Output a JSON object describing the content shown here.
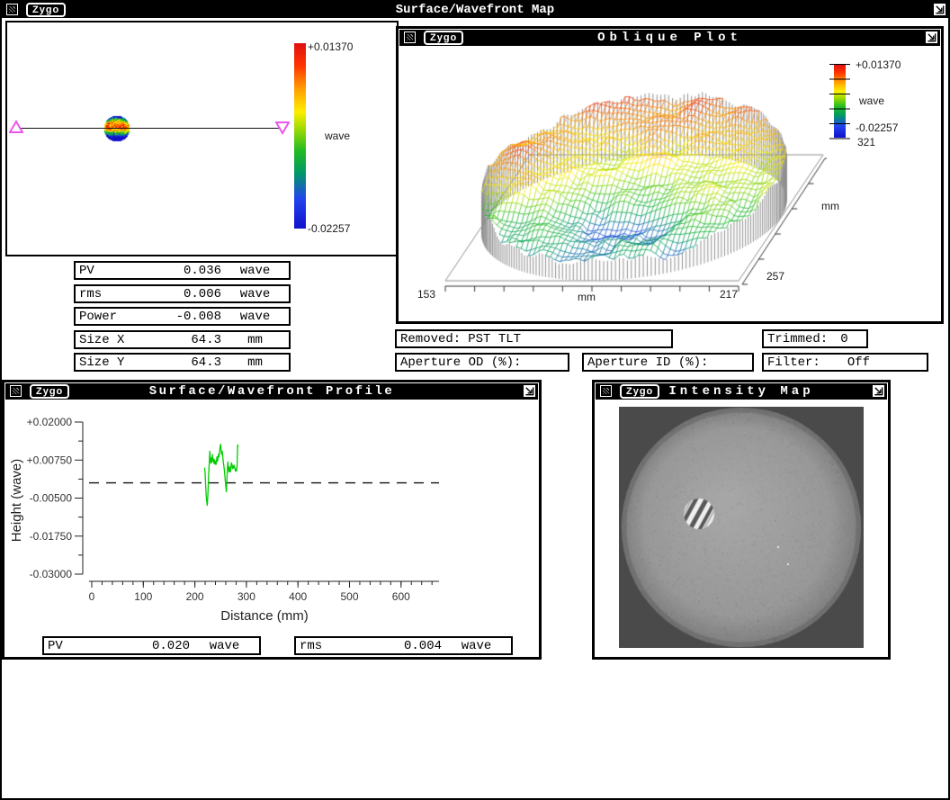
{
  "windows": {
    "main": {
      "logo": "Zygo",
      "title": "Surface/Wavefront Map"
    },
    "oblique": {
      "logo": "Zygo",
      "title": "Oblique Plot"
    },
    "profile": {
      "logo": "Zygo",
      "title": "Surface/Wavefront Profile"
    },
    "intensity": {
      "logo": "Zygo",
      "title": "Intensity Map"
    }
  },
  "map_panel": {
    "colorbar": {
      "max_label": "+0.01370",
      "unit_label": "wave",
      "min_label": "-0.02257"
    }
  },
  "map_stats": {
    "rows": [
      {
        "label": "PV",
        "value": "0.036",
        "unit": "wave"
      },
      {
        "label": "rms",
        "value": "0.006",
        "unit": "wave"
      },
      {
        "label": "Power",
        "value": "-0.008",
        "unit": "wave"
      },
      {
        "label": "Size X",
        "value": "64.3",
        "unit": "mm"
      },
      {
        "label": "Size Y",
        "value": "64.3",
        "unit": "mm"
      }
    ]
  },
  "oblique_panel": {
    "colorbar": {
      "max_label": "+0.01370",
      "unit_label": "wave",
      "min_label": "-0.02257"
    },
    "axes": {
      "x_min": "153",
      "x_unit": "mm",
      "x_max": "217",
      "depth_min": "257",
      "depth_max": "321",
      "depth_unit": "mm"
    }
  },
  "attributes": {
    "removed_label": "Removed:",
    "removed_value": "PST TLT",
    "trimmed_label": "Trimmed:",
    "trimmed_value": "0",
    "aperture_od_label": "Aperture OD (%):",
    "aperture_id_label": "Aperture ID (%):",
    "filter_label": "Filter:",
    "filter_value": "Off"
  },
  "profile_stats": {
    "rows": [
      {
        "label": "PV",
        "value": "0.020",
        "unit": "wave"
      },
      {
        "label": "rms",
        "value": "0.004",
        "unit": "wave"
      }
    ]
  },
  "colors": {
    "titlebar_bg": "#000000",
    "trace_green": "#00cc00",
    "marker_magenta": "#ee55ee",
    "intensity_bg": "#4a4a4a",
    "aperture_gray": "#9a9a9a",
    "skirt_gray": "#909090"
  },
  "chart_data": [
    {
      "type": "line",
      "title": "Surface/Wavefront Profile",
      "xlabel": "Distance (mm)",
      "ylabel": "Height (wave)",
      "xlim": [
        0,
        675
      ],
      "ylim": [
        -0.03,
        0.02
      ],
      "x_major_ticks": [
        0,
        100,
        200,
        300,
        400,
        500,
        600
      ],
      "x_minor_step": 20,
      "y_major_ticks": [
        0.02,
        0.0075,
        -0.005,
        -0.0175,
        -0.03
      ],
      "y_tick_labels": [
        "+0.02000",
        "+0.00750",
        "-0.00500",
        "-0.01750",
        "-0.03000"
      ],
      "zero_reference_line": 0.0,
      "grid": false,
      "legend": "none",
      "stats": {
        "PV_wave": 0.02,
        "rms_wave": 0.004
      },
      "series": [
        {
          "name": "profile",
          "color": "#00cc00",
          "x": [
            219,
            220,
            221,
            222,
            223,
            224,
            225,
            226,
            227,
            228,
            229,
            230,
            231,
            232,
            233,
            234,
            235,
            236,
            237,
            238,
            239,
            240,
            241,
            242,
            243,
            244,
            245,
            246,
            247,
            248,
            249,
            250,
            251,
            252,
            253,
            254,
            255,
            256,
            257,
            258,
            259,
            260,
            261,
            262,
            263,
            264,
            265,
            266,
            267,
            268,
            269,
            270,
            271,
            272,
            273,
            274,
            275,
            276,
            277,
            278,
            279,
            280,
            281,
            282,
            283,
            284
          ],
          "y": [
            0.005,
            0.0028,
            -0.001,
            -0.0042,
            -0.006,
            -0.0074,
            -0.0048,
            -0.0008,
            0.0035,
            0.0068,
            0.0104,
            0.0078,
            0.0064,
            0.0082,
            0.0068,
            0.0093,
            0.0072,
            0.0079,
            0.0064,
            0.0076,
            0.0062,
            0.0071,
            0.006,
            0.0073,
            0.0086,
            0.0071,
            0.0082,
            0.0094,
            0.0086,
            0.0104,
            0.0118,
            0.0127,
            0.0106,
            0.0094,
            0.0104,
            0.0089,
            0.0071,
            0.0059,
            0.0045,
            0.0028,
            0.0008,
            -0.0012,
            -0.0029,
            0.0004,
            0.0042,
            0.0069,
            0.0049,
            0.0036,
            0.0053,
            0.0041,
            0.0036,
            0.0052,
            0.0066,
            0.0061,
            0.0047,
            0.0055,
            0.0049,
            0.0058,
            0.0052,
            0.0044,
            0.0038,
            0.0046,
            0.004,
            0.0058,
            0.0125,
            0.0118
          ]
        }
      ]
    },
    {
      "type": "3d_wireframe_surface",
      "title": "Oblique Plot",
      "x_axis": {
        "label": "mm",
        "min": 153,
        "max": 217
      },
      "depth_axis": {
        "label": "mm",
        "min": 257,
        "max": 321
      },
      "z_axis": {
        "label": "wave",
        "min": -0.02257,
        "max": 0.0137
      },
      "z_min_label": "-0.02257",
      "z_max_label": "+0.01370",
      "colormap": [
        {
          "t": 0.0,
          "c": "#1111cc"
        },
        {
          "t": 0.16,
          "c": "#2244ee"
        },
        {
          "t": 0.3,
          "c": "#009966"
        },
        {
          "t": 0.42,
          "c": "#22bb22"
        },
        {
          "t": 0.55,
          "c": "#aadd00"
        },
        {
          "t": 0.63,
          "c": "#ffee00"
        },
        {
          "t": 0.76,
          "c": "#ff9900"
        },
        {
          "t": 0.88,
          "c": "#ff3300"
        },
        {
          "t": 1.0,
          "c": "#dd1111"
        }
      ],
      "description": "Circular optical surface as rainbow wireframe mesh: red high region toward back and left hump, yellow mid band, green low basin at front center, gray skirt lines dropping to base plane with ticked axes."
    },
    {
      "type": "heatmap_circle",
      "title": "Surface/Wavefront Map thumbnail",
      "z_range_wave": [
        -0.02257,
        0.0137
      ],
      "pattern": "blue at top rim, red-orange central band, green and blue patches toward bottom"
    },
    {
      "type": "intensity_image",
      "title": "Intensity Map",
      "description": "Grayscale interferogram: large light-gray circular aperture on dark-gray square, small bright disk with diagonal fringes left of center, two tiny bright specks near center"
    }
  ]
}
